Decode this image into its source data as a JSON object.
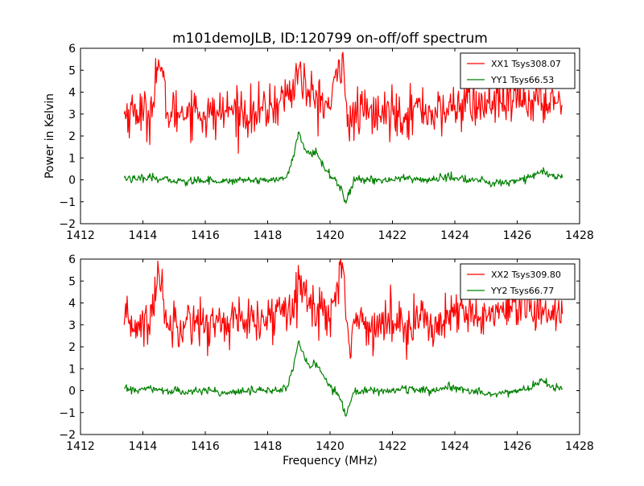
{
  "figure": {
    "title": "m101demoJLB, ID:120799 on-off/off spectrum",
    "xlabel": "Frequency (MHz)",
    "ylabel": "Power in Kelvin"
  },
  "colors": {
    "series_1": "#ff0000",
    "series_2": "#008000",
    "axes": "#000000"
  },
  "chart_data": [
    {
      "type": "line",
      "xlim": [
        1412,
        1428
      ],
      "ylim": [
        -2,
        6
      ],
      "xticks": [
        1412,
        1414,
        1416,
        1418,
        1420,
        1422,
        1424,
        1426,
        1428
      ],
      "yticks": [
        -2,
        -1,
        0,
        1,
        2,
        3,
        4,
        5,
        6
      ],
      "xtick_labels": [
        "1412",
        "1414",
        "1416",
        "1418",
        "1420",
        "1422",
        "1424",
        "1426",
        "1428"
      ],
      "ytick_labels": [
        "−2",
        "−1",
        "0",
        "1",
        "2",
        "3",
        "4",
        "5",
        "6"
      ],
      "ylabel": "Power in Kelvin",
      "xlabel": "",
      "grid": false,
      "legend": "top-right",
      "series": [
        {
          "name": "XX1 Tsys308.07",
          "color": "#ff0000",
          "x": [
            1413.4,
            1413.8,
            1414.2,
            1414.5,
            1414.8,
            1415.2,
            1415.6,
            1416.0,
            1416.4,
            1416.8,
            1417.2,
            1417.6,
            1418.0,
            1418.4,
            1418.8,
            1419.0,
            1419.3,
            1419.6,
            1420.0,
            1420.4,
            1420.6,
            1420.8,
            1421.2,
            1421.6,
            1422.0,
            1422.4,
            1422.8,
            1423.2,
            1423.6,
            1424.0,
            1424.4,
            1424.8,
            1425.2,
            1425.6,
            1426.0,
            1426.4,
            1426.8,
            1427.2,
            1427.45
          ],
          "y": [
            3.0,
            3.2,
            2.8,
            5.5,
            3.0,
            3.1,
            3.3,
            2.9,
            3.0,
            3.2,
            3.1,
            3.0,
            3.2,
            3.6,
            4.1,
            5.1,
            3.8,
            3.7,
            3.3,
            5.8,
            2.2,
            3.0,
            3.1,
            2.9,
            3.2,
            3.0,
            3.3,
            3.1,
            3.0,
            3.4,
            3.5,
            3.3,
            3.6,
            3.4,
            3.7,
            3.6,
            3.5,
            3.8,
            3.4
          ]
        },
        {
          "name": "YY1 Tsys66.53",
          "color": "#008000",
          "x": [
            1413.4,
            1413.8,
            1414.2,
            1414.6,
            1415.0,
            1415.4,
            1415.8,
            1416.2,
            1416.6,
            1417.0,
            1417.4,
            1417.8,
            1418.2,
            1418.6,
            1418.8,
            1419.0,
            1419.1,
            1419.2,
            1419.4,
            1419.5,
            1419.7,
            1419.9,
            1420.1,
            1420.3,
            1420.4,
            1420.5,
            1420.6,
            1420.8,
            1421.2,
            1421.6,
            1422.0,
            1422.4,
            1422.8,
            1423.2,
            1423.6,
            1424.0,
            1424.4,
            1424.8,
            1425.2,
            1425.6,
            1426.0,
            1426.4,
            1426.8,
            1427.2,
            1427.45
          ],
          "y": [
            0.1,
            0.0,
            0.1,
            0.0,
            0.0,
            -0.1,
            0.0,
            0.0,
            -0.1,
            0.0,
            0.0,
            0.0,
            0.0,
            0.1,
            0.9,
            2.2,
            1.7,
            1.4,
            1.1,
            1.3,
            0.9,
            0.4,
            0.1,
            -0.3,
            -0.5,
            -1.1,
            -0.7,
            0.0,
            0.0,
            0.0,
            0.0,
            0.1,
            0.0,
            0.0,
            0.1,
            0.1,
            0.0,
            0.0,
            -0.2,
            -0.1,
            0.0,
            0.1,
            0.4,
            0.1,
            0.1
          ]
        }
      ]
    },
    {
      "type": "line",
      "xlim": [
        1412,
        1428
      ],
      "ylim": [
        -2,
        6
      ],
      "xticks": [
        1412,
        1414,
        1416,
        1418,
        1420,
        1422,
        1424,
        1426,
        1428
      ],
      "yticks": [
        -2,
        -1,
        0,
        1,
        2,
        3,
        4,
        5,
        6
      ],
      "xtick_labels": [
        "1412",
        "1414",
        "1416",
        "1418",
        "1420",
        "1422",
        "1424",
        "1426",
        "1428"
      ],
      "ytick_labels": [
        "−2",
        "−1",
        "0",
        "1",
        "2",
        "3",
        "4",
        "5",
        "6"
      ],
      "ylabel": "",
      "xlabel": "Frequency (MHz)",
      "grid": false,
      "legend": "top-right",
      "series": [
        {
          "name": "XX2 Tsys309.80",
          "color": "#ff0000",
          "x": [
            1413.4,
            1413.8,
            1414.2,
            1414.5,
            1414.8,
            1415.2,
            1415.6,
            1416.0,
            1416.4,
            1416.8,
            1417.2,
            1417.6,
            1418.0,
            1418.4,
            1418.8,
            1419.0,
            1419.3,
            1419.6,
            1420.0,
            1420.4,
            1420.6,
            1420.8,
            1421.2,
            1421.6,
            1422.0,
            1422.4,
            1422.8,
            1423.2,
            1423.6,
            1424.0,
            1424.4,
            1424.8,
            1425.2,
            1425.6,
            1426.0,
            1426.4,
            1426.8,
            1427.2,
            1427.45
          ],
          "y": [
            3.0,
            3.1,
            2.9,
            5.5,
            3.0,
            3.2,
            3.3,
            2.9,
            3.1,
            3.2,
            3.1,
            3.0,
            3.2,
            3.7,
            4.2,
            5.1,
            3.9,
            3.8,
            3.3,
            5.9,
            2.2,
            3.1,
            3.1,
            2.9,
            3.2,
            3.1,
            3.3,
            3.1,
            3.0,
            3.4,
            3.5,
            3.3,
            3.6,
            3.4,
            3.7,
            3.6,
            3.5,
            3.8,
            3.5
          ]
        },
        {
          "name": "YY2 Tsys66.77",
          "color": "#008000",
          "x": [
            1413.4,
            1413.8,
            1414.2,
            1414.6,
            1415.0,
            1415.4,
            1415.8,
            1416.2,
            1416.6,
            1417.0,
            1417.4,
            1417.8,
            1418.2,
            1418.6,
            1418.8,
            1419.0,
            1419.1,
            1419.2,
            1419.4,
            1419.5,
            1419.7,
            1419.9,
            1420.1,
            1420.3,
            1420.4,
            1420.5,
            1420.6,
            1420.8,
            1421.2,
            1421.6,
            1422.0,
            1422.4,
            1422.8,
            1423.2,
            1423.6,
            1424.0,
            1424.4,
            1424.8,
            1425.2,
            1425.6,
            1426.0,
            1426.4,
            1426.8,
            1427.2,
            1427.45
          ],
          "y": [
            0.1,
            0.0,
            0.1,
            0.0,
            0.0,
            -0.1,
            0.0,
            0.0,
            -0.1,
            0.0,
            0.0,
            0.0,
            0.0,
            0.1,
            0.9,
            2.3,
            1.8,
            1.4,
            1.1,
            1.3,
            0.9,
            0.4,
            0.1,
            -0.3,
            -0.5,
            -1.2,
            -0.7,
            0.0,
            0.0,
            0.0,
            0.0,
            0.1,
            0.0,
            0.0,
            0.1,
            0.1,
            0.0,
            0.0,
            -0.2,
            -0.1,
            0.0,
            0.1,
            0.5,
            0.1,
            0.1
          ]
        }
      ]
    }
  ]
}
